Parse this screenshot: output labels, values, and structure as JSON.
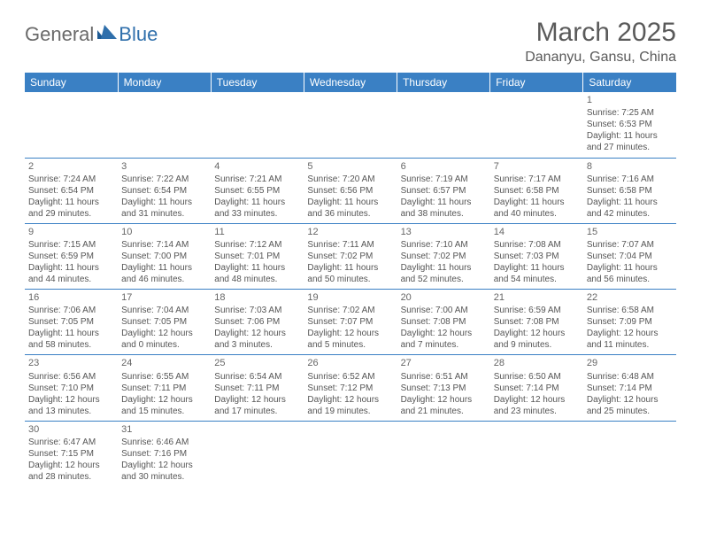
{
  "logo": {
    "part1": "General",
    "part2": "Blue"
  },
  "title": "March 2025",
  "location": "Dananyu, Gansu, China",
  "colors": {
    "header_bg": "#3a80c4",
    "header_fg": "#ffffff",
    "border": "#3a80c4",
    "text": "#555555",
    "title_fg": "#5a5a5a",
    "logo_gray": "#6a6a6a",
    "logo_blue": "#2f6fab"
  },
  "weekdays": [
    "Sunday",
    "Monday",
    "Tuesday",
    "Wednesday",
    "Thursday",
    "Friday",
    "Saturday"
  ],
  "weeks": [
    [
      null,
      null,
      null,
      null,
      null,
      null,
      {
        "d": "1",
        "sr": "Sunrise: 7:25 AM",
        "ss": "Sunset: 6:53 PM",
        "dl1": "Daylight: 11 hours",
        "dl2": "and 27 minutes."
      }
    ],
    [
      {
        "d": "2",
        "sr": "Sunrise: 7:24 AM",
        "ss": "Sunset: 6:54 PM",
        "dl1": "Daylight: 11 hours",
        "dl2": "and 29 minutes."
      },
      {
        "d": "3",
        "sr": "Sunrise: 7:22 AM",
        "ss": "Sunset: 6:54 PM",
        "dl1": "Daylight: 11 hours",
        "dl2": "and 31 minutes."
      },
      {
        "d": "4",
        "sr": "Sunrise: 7:21 AM",
        "ss": "Sunset: 6:55 PM",
        "dl1": "Daylight: 11 hours",
        "dl2": "and 33 minutes."
      },
      {
        "d": "5",
        "sr": "Sunrise: 7:20 AM",
        "ss": "Sunset: 6:56 PM",
        "dl1": "Daylight: 11 hours",
        "dl2": "and 36 minutes."
      },
      {
        "d": "6",
        "sr": "Sunrise: 7:19 AM",
        "ss": "Sunset: 6:57 PM",
        "dl1": "Daylight: 11 hours",
        "dl2": "and 38 minutes."
      },
      {
        "d": "7",
        "sr": "Sunrise: 7:17 AM",
        "ss": "Sunset: 6:58 PM",
        "dl1": "Daylight: 11 hours",
        "dl2": "and 40 minutes."
      },
      {
        "d": "8",
        "sr": "Sunrise: 7:16 AM",
        "ss": "Sunset: 6:58 PM",
        "dl1": "Daylight: 11 hours",
        "dl2": "and 42 minutes."
      }
    ],
    [
      {
        "d": "9",
        "sr": "Sunrise: 7:15 AM",
        "ss": "Sunset: 6:59 PM",
        "dl1": "Daylight: 11 hours",
        "dl2": "and 44 minutes."
      },
      {
        "d": "10",
        "sr": "Sunrise: 7:14 AM",
        "ss": "Sunset: 7:00 PM",
        "dl1": "Daylight: 11 hours",
        "dl2": "and 46 minutes."
      },
      {
        "d": "11",
        "sr": "Sunrise: 7:12 AM",
        "ss": "Sunset: 7:01 PM",
        "dl1": "Daylight: 11 hours",
        "dl2": "and 48 minutes."
      },
      {
        "d": "12",
        "sr": "Sunrise: 7:11 AM",
        "ss": "Sunset: 7:02 PM",
        "dl1": "Daylight: 11 hours",
        "dl2": "and 50 minutes."
      },
      {
        "d": "13",
        "sr": "Sunrise: 7:10 AM",
        "ss": "Sunset: 7:02 PM",
        "dl1": "Daylight: 11 hours",
        "dl2": "and 52 minutes."
      },
      {
        "d": "14",
        "sr": "Sunrise: 7:08 AM",
        "ss": "Sunset: 7:03 PM",
        "dl1": "Daylight: 11 hours",
        "dl2": "and 54 minutes."
      },
      {
        "d": "15",
        "sr": "Sunrise: 7:07 AM",
        "ss": "Sunset: 7:04 PM",
        "dl1": "Daylight: 11 hours",
        "dl2": "and 56 minutes."
      }
    ],
    [
      {
        "d": "16",
        "sr": "Sunrise: 7:06 AM",
        "ss": "Sunset: 7:05 PM",
        "dl1": "Daylight: 11 hours",
        "dl2": "and 58 minutes."
      },
      {
        "d": "17",
        "sr": "Sunrise: 7:04 AM",
        "ss": "Sunset: 7:05 PM",
        "dl1": "Daylight: 12 hours",
        "dl2": "and 0 minutes."
      },
      {
        "d": "18",
        "sr": "Sunrise: 7:03 AM",
        "ss": "Sunset: 7:06 PM",
        "dl1": "Daylight: 12 hours",
        "dl2": "and 3 minutes."
      },
      {
        "d": "19",
        "sr": "Sunrise: 7:02 AM",
        "ss": "Sunset: 7:07 PM",
        "dl1": "Daylight: 12 hours",
        "dl2": "and 5 minutes."
      },
      {
        "d": "20",
        "sr": "Sunrise: 7:00 AM",
        "ss": "Sunset: 7:08 PM",
        "dl1": "Daylight: 12 hours",
        "dl2": "and 7 minutes."
      },
      {
        "d": "21",
        "sr": "Sunrise: 6:59 AM",
        "ss": "Sunset: 7:08 PM",
        "dl1": "Daylight: 12 hours",
        "dl2": "and 9 minutes."
      },
      {
        "d": "22",
        "sr": "Sunrise: 6:58 AM",
        "ss": "Sunset: 7:09 PM",
        "dl1": "Daylight: 12 hours",
        "dl2": "and 11 minutes."
      }
    ],
    [
      {
        "d": "23",
        "sr": "Sunrise: 6:56 AM",
        "ss": "Sunset: 7:10 PM",
        "dl1": "Daylight: 12 hours",
        "dl2": "and 13 minutes."
      },
      {
        "d": "24",
        "sr": "Sunrise: 6:55 AM",
        "ss": "Sunset: 7:11 PM",
        "dl1": "Daylight: 12 hours",
        "dl2": "and 15 minutes."
      },
      {
        "d": "25",
        "sr": "Sunrise: 6:54 AM",
        "ss": "Sunset: 7:11 PM",
        "dl1": "Daylight: 12 hours",
        "dl2": "and 17 minutes."
      },
      {
        "d": "26",
        "sr": "Sunrise: 6:52 AM",
        "ss": "Sunset: 7:12 PM",
        "dl1": "Daylight: 12 hours",
        "dl2": "and 19 minutes."
      },
      {
        "d": "27",
        "sr": "Sunrise: 6:51 AM",
        "ss": "Sunset: 7:13 PM",
        "dl1": "Daylight: 12 hours",
        "dl2": "and 21 minutes."
      },
      {
        "d": "28",
        "sr": "Sunrise: 6:50 AM",
        "ss": "Sunset: 7:14 PM",
        "dl1": "Daylight: 12 hours",
        "dl2": "and 23 minutes."
      },
      {
        "d": "29",
        "sr": "Sunrise: 6:48 AM",
        "ss": "Sunset: 7:14 PM",
        "dl1": "Daylight: 12 hours",
        "dl2": "and 25 minutes."
      }
    ],
    [
      {
        "d": "30",
        "sr": "Sunrise: 6:47 AM",
        "ss": "Sunset: 7:15 PM",
        "dl1": "Daylight: 12 hours",
        "dl2": "and 28 minutes."
      },
      {
        "d": "31",
        "sr": "Sunrise: 6:46 AM",
        "ss": "Sunset: 7:16 PM",
        "dl1": "Daylight: 12 hours",
        "dl2": "and 30 minutes."
      },
      null,
      null,
      null,
      null,
      null
    ]
  ]
}
